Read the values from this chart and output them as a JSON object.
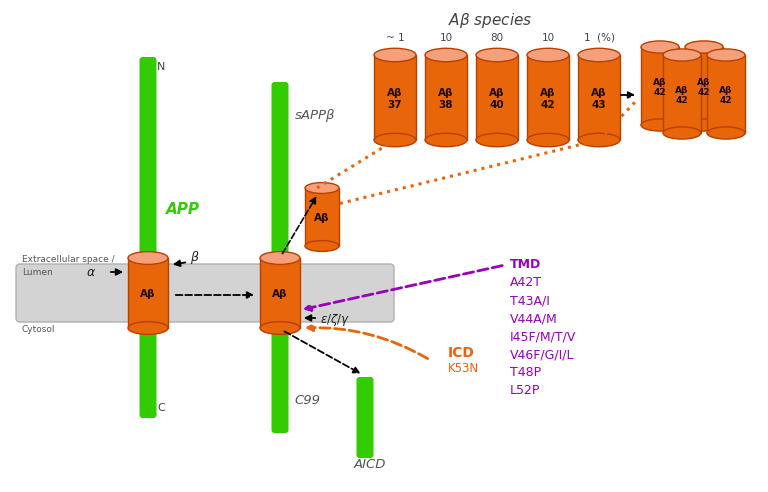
{
  "bg_color": "#ffffff",
  "membrane_color": "#d3d3d3",
  "green_color": "#33cc00",
  "orange_body": "#e8650a",
  "orange_top": "#f5a07a",
  "orange_dark": "#b84000",
  "purple_color": "#9900bb",
  "orange_arrow": "#e8650a",
  "cylinder_labels": [
    "Aβ\n37",
    "Aβ\n38",
    "Aβ\n40",
    "Aβ\n42",
    "Aβ\n43"
  ],
  "cylinder_percents": [
    "~ 1",
    "10",
    "80",
    "10",
    "1  (%)"
  ],
  "tmd_mutations": [
    "TMD",
    "A42T",
    "T43A/I",
    "V44A/M",
    "I45F/M/T/V",
    "V46F/G/I/L",
    "T48P",
    "L52P"
  ]
}
